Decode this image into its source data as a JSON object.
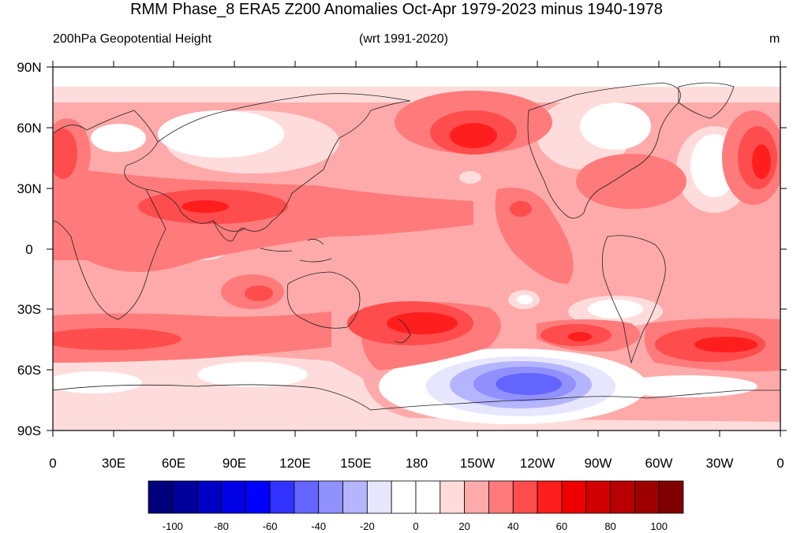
{
  "title": "RMM Phase_8 ERA5 Z200 Anomalies Oct-Apr 1979-2023 minus 1940-1978",
  "subtitle_left": "200hPa Geopotential Height",
  "subtitle_center": "(wrt 1991-2020)",
  "units": "m",
  "lat_ticks": [
    "90N",
    "60N",
    "30N",
    "0",
    "30S",
    "60S",
    "90S"
  ],
  "lon_ticks": [
    "0",
    "30E",
    "60E",
    "90E",
    "120E",
    "150E",
    "180",
    "150W",
    "120W",
    "90W",
    "60W",
    "30W",
    "0"
  ],
  "colorbar": {
    "labels": [
      "-100",
      "-80",
      "-60",
      "-40",
      "-20",
      "0",
      "20",
      "40",
      "60",
      "80",
      "100"
    ],
    "colors": [
      "#00007a",
      "#00009c",
      "#0000c4",
      "#0000e6",
      "#0000ff",
      "#3232ff",
      "#6464ff",
      "#9090ff",
      "#b4b4ff",
      "#e6e6ff",
      "#ffffff",
      "#ffffff",
      "#ffdcdc",
      "#ffaaaa",
      "#ff7b7b",
      "#ff4d4d",
      "#ff1e1e",
      "#ee0000",
      "#d20000",
      "#b80000",
      "#9e0000",
      "#800000"
    ]
  },
  "map_colors": {
    "white": "#ffffff",
    "c10": "#ffdcdc",
    "c20": "#ffaaaa",
    "c30": "#ff7b7b",
    "c40": "#ff4d4d",
    "c50": "#ff1e1e",
    "n10": "#e6e6ff",
    "n20": "#b4b4ff",
    "n30": "#9090ff",
    "n40": "#6464ff"
  }
}
